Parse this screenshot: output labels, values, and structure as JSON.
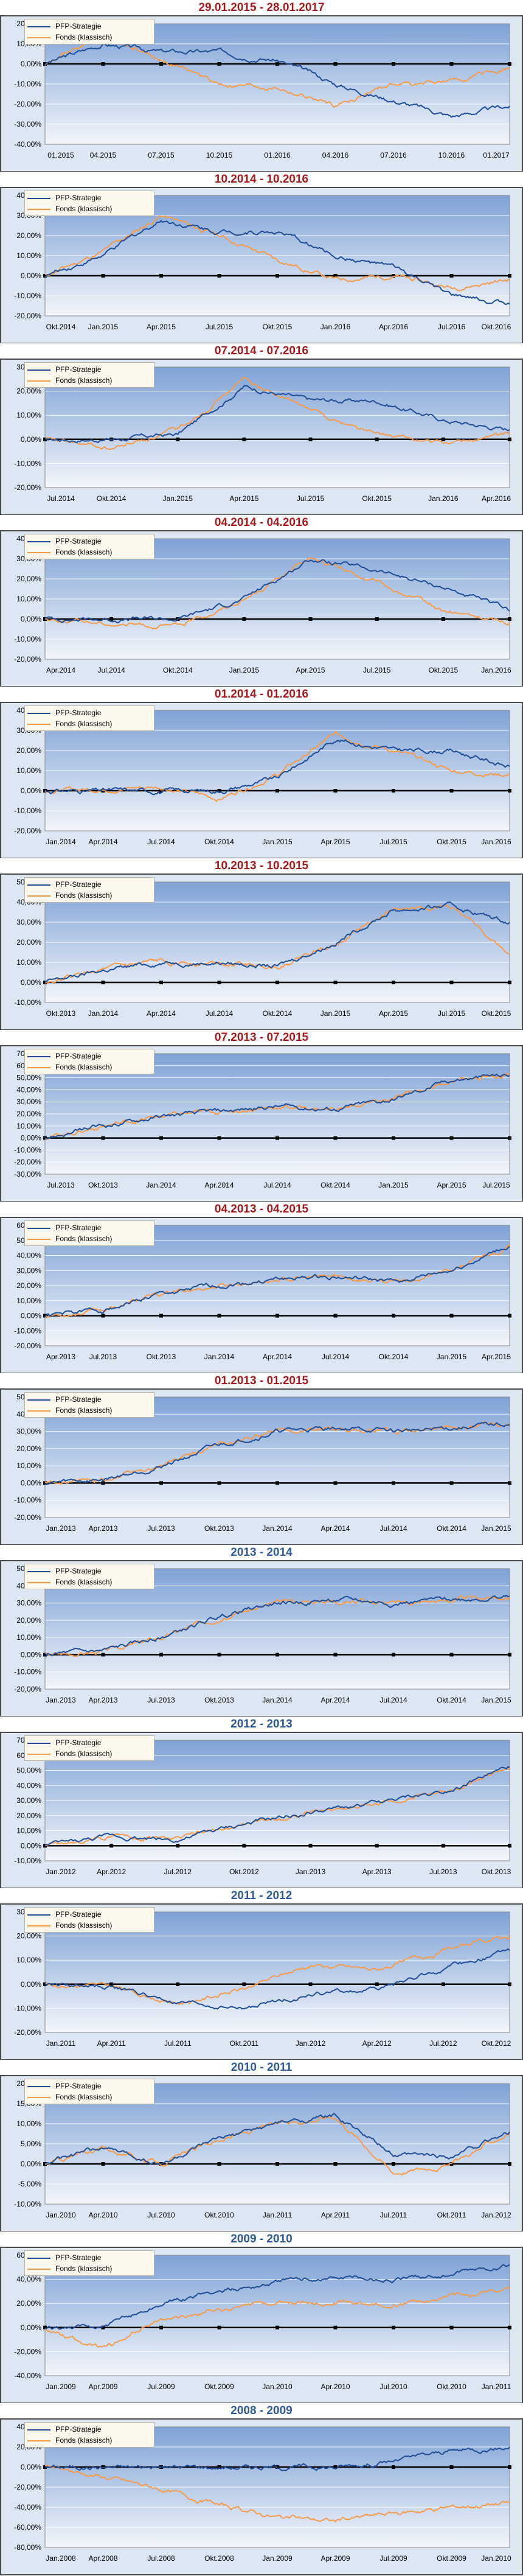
{
  "legend": {
    "strategy": "PFP-Strategie",
    "fund": "Fonds (klassisch)"
  },
  "colors": {
    "strategy": "#1f4e96",
    "fund": "#f59b4c",
    "title_red": "#a8191c",
    "title_blue": "#2f5a97",
    "zero_line": "#000000",
    "grid": "#ffffff"
  },
  "chart_data": [
    {
      "type": "line",
      "title": "29.01.2015 - 28.01.2017",
      "title_color": "red",
      "categories": [
        "01.2015",
        "04.2015",
        "07.2015",
        "10.2015",
        "01.2016",
        "04.2016",
        "07.2016",
        "10.2016",
        "01.2017"
      ],
      "y_ticks": [
        "20,00%",
        "10,00%",
        "0,00%",
        "-10,00%",
        "-20,00%",
        "-30,00%",
        "-40,00%"
      ],
      "ylim": [
        -40,
        20
      ],
      "series": [
        {
          "name": "PFP-Strategie",
          "values": [
            0,
            10,
            6,
            6,
            2,
            -10,
            -18,
            -26,
            -21
          ]
        },
        {
          "name": "Fonds (klassisch)",
          "values": [
            0,
            15,
            2,
            -10,
            -12,
            -21,
            -10,
            -9,
            -2
          ]
        }
      ]
    },
    {
      "type": "line",
      "title": "10.2014 - 10.2016",
      "title_color": "red",
      "categories": [
        "Okt.2014",
        "Jan.2015",
        "Apr.2015",
        "Jul.2015",
        "Okt.2015",
        "Jan.2016",
        "Apr.2016",
        "Jul.2016",
        "Okt.2016"
      ],
      "y_ticks": [
        "40,00%",
        "30,00%",
        "20,00%",
        "10,00%",
        "0,00%",
        "-10,00%",
        "-20,00%"
      ],
      "ylim": [
        -20,
        40
      ],
      "series": [
        {
          "name": "PFP-Strategie",
          "values": [
            0,
            10,
            28,
            22,
            22,
            10,
            4,
            -10,
            -14
          ]
        },
        {
          "name": "Fonds (klassisch)",
          "values": [
            0,
            12,
            30,
            20,
            8,
            -2,
            0,
            -6,
            -2
          ]
        }
      ]
    },
    {
      "type": "line",
      "title": "07.2014 - 07.2016",
      "title_color": "red",
      "categories": [
        "Jul.2014",
        "Okt.2014",
        "Jan.2015",
        "Apr.2015",
        "Jul.2015",
        "Okt.2015",
        "Jan.2016",
        "Apr.2016"
      ],
      "y_ticks": [
        "30,00%",
        "20,00%",
        "10,00%",
        "0,00%",
        "-10,00%",
        "-20,00%"
      ],
      "ylim": [
        -20,
        30
      ],
      "series": [
        {
          "name": "PFP-Strategie",
          "values": [
            0,
            0,
            2,
            22,
            16,
            16,
            8,
            4
          ]
        },
        {
          "name": "Fonds (klassisch)",
          "values": [
            0,
            -4,
            4,
            25,
            12,
            2,
            -2,
            2
          ]
        }
      ]
    },
    {
      "type": "line",
      "title": "04.2014 - 04.2016",
      "title_color": "red",
      "categories": [
        "Apr.2014",
        "Jul.2014",
        "Okt.2014",
        "Jan.2015",
        "Apr.2015",
        "Jul.2015",
        "Okt.2015",
        "Jan.2016"
      ],
      "y_ticks": [
        "40,00%",
        "30,00%",
        "20,00%",
        "10,00%",
        "0,00%",
        "-10,00%",
        "-20,00%"
      ],
      "ylim": [
        -20,
        40
      ],
      "series": [
        {
          "name": "PFP-Strategie",
          "values": [
            0,
            0,
            0,
            10,
            30,
            24,
            16,
            4
          ]
        },
        {
          "name": "Fonds (klassisch)",
          "values": [
            0,
            -2,
            -4,
            10,
            30,
            18,
            4,
            -2
          ]
        }
      ]
    },
    {
      "type": "line",
      "title": "01.2014 - 01.2016",
      "title_color": "red",
      "categories": [
        "Jan.2014",
        "Apr.2014",
        "Jul.2014",
        "Okt.2014",
        "Jan.2015",
        "Apr.2015",
        "Jul.2015",
        "Okt.2015",
        "Jan.2016"
      ],
      "y_ticks": [
        "40,00%",
        "30,00%",
        "20,00%",
        "10,00%",
        "0,00%",
        "-10,00%",
        "-20,00%"
      ],
      "ylim": [
        -20,
        40
      ],
      "series": [
        {
          "name": "PFP-Strategie",
          "values": [
            0,
            0,
            0,
            0,
            6,
            26,
            20,
            20,
            12
          ]
        },
        {
          "name": "Fonds (klassisch)",
          "values": [
            0,
            1,
            2,
            -4,
            8,
            28,
            20,
            10,
            8
          ]
        }
      ]
    },
    {
      "type": "line",
      "title": "10.2013 - 10.2015",
      "title_color": "red",
      "categories": [
        "Okt.2013",
        "Jan.2014",
        "Apr.2014",
        "Jul.2014",
        "Okt.2014",
        "Jan.2015",
        "Apr.2015",
        "Jul.2015",
        "Okt.2015"
      ],
      "y_ticks": [
        "50,00%",
        "40,00%",
        "30,00%",
        "20,00%",
        "10,00%",
        "0,00%",
        "-10,00%"
      ],
      "ylim": [
        -10,
        50
      ],
      "series": [
        {
          "name": "PFP-Strategie",
          "values": [
            0,
            6,
            10,
            10,
            8,
            20,
            36,
            38,
            30
          ]
        },
        {
          "name": "Fonds (klassisch)",
          "values": [
            0,
            6,
            10,
            10,
            8,
            20,
            36,
            38,
            14
          ]
        }
      ]
    },
    {
      "type": "line",
      "title": "07.2013 - 07.2015",
      "title_color": "red",
      "categories": [
        "Jul.2013",
        "Okt.2013",
        "Jan.2014",
        "Apr.2014",
        "Jul.2014",
        "Okt.2014",
        "Jan.2015",
        "Apr.2015",
        "Jul.2015"
      ],
      "y_ticks": [
        "70,00%",
        "60,00%",
        "50,00%",
        "40,00%",
        "30,00%",
        "20,00%",
        "10,00%",
        "0,00%",
        "-10,00%",
        "-20,00%",
        "-30,00%"
      ],
      "ylim": [
        -30,
        70
      ],
      "series": [
        {
          "name": "PFP-Strategie",
          "values": [
            0,
            10,
            18,
            22,
            26,
            24,
            32,
            48,
            52
          ]
        },
        {
          "name": "Fonds (klassisch)",
          "values": [
            0,
            10,
            18,
            22,
            26,
            24,
            32,
            48,
            52
          ]
        }
      ]
    },
    {
      "type": "line",
      "title": "04.2013 - 04.2015",
      "title_color": "red",
      "categories": [
        "Apr.2013",
        "Jul.2013",
        "Okt.2013",
        "Jan.2014",
        "Apr.2014",
        "Jul.2014",
        "Okt.2014",
        "Jan.2015",
        "Apr.2015"
      ],
      "y_ticks": [
        "60,00%",
        "50,00%",
        "40,00%",
        "30,00%",
        "20,00%",
        "10,00%",
        "0,00%",
        "-10,00%",
        "-20,00%"
      ],
      "ylim": [
        -20,
        60
      ],
      "series": [
        {
          "name": "PFP-Strategie",
          "values": [
            0,
            4,
            14,
            20,
            24,
            26,
            22,
            30,
            46
          ]
        },
        {
          "name": "Fonds (klassisch)",
          "values": [
            0,
            4,
            14,
            20,
            24,
            26,
            22,
            30,
            46
          ]
        }
      ]
    },
    {
      "type": "line",
      "title": "01.2013 - 01.2015",
      "title_color": "red",
      "categories": [
        "Jan.2013",
        "Apr.2013",
        "Jul.2013",
        "Okt.2013",
        "Jan.2014",
        "Apr.2014",
        "Jul.2014",
        "Okt.2014",
        "Jan.2015"
      ],
      "y_ticks": [
        "50,00%",
        "40,00%",
        "30,00%",
        "20,00%",
        "10,00%",
        "0,00%",
        "-10,00%",
        "-20,00%"
      ],
      "ylim": [
        -20,
        50
      ],
      "series": [
        {
          "name": "PFP-Strategie",
          "values": [
            0,
            2,
            10,
            22,
            30,
            32,
            30,
            32,
            34
          ]
        },
        {
          "name": "Fonds (klassisch)",
          "values": [
            0,
            2,
            10,
            22,
            30,
            32,
            30,
            32,
            34
          ]
        }
      ]
    },
    {
      "type": "line",
      "title": "2013 - 2014",
      "title_color": "blue",
      "categories": [
        "Jan.2013",
        "Apr.2013",
        "Jul.2013",
        "Okt.2013",
        "Jan.2014",
        "Apr.2014",
        "Jul.2014",
        "Okt.2014",
        "Jan.2015"
      ],
      "y_ticks": [
        "50,00%",
        "40,00%",
        "30,00%",
        "20,00%",
        "10,00%",
        "0,00%",
        "-10,00%",
        "-20,00%"
      ],
      "ylim": [
        -20,
        50
      ],
      "series": [
        {
          "name": "PFP-Strategie",
          "values": [
            0,
            2,
            10,
            22,
            30,
            32,
            30,
            32,
            34
          ]
        },
        {
          "name": "Fonds (klassisch)",
          "values": [
            0,
            2,
            10,
            22,
            30,
            32,
            30,
            32,
            34
          ]
        }
      ]
    },
    {
      "type": "line",
      "title": "2012 - 2013",
      "title_color": "blue",
      "categories": [
        "Jan.2012",
        "Apr.2012",
        "Jul.2012",
        "Okt.2012",
        "Jan.2013",
        "Apr.2013",
        "Jul.2013",
        "Okt.2013"
      ],
      "y_ticks": [
        "70,00%",
        "60,00%",
        "50,00%",
        "40,00%",
        "30,00%",
        "20,00%",
        "10,00%",
        "0,00%",
        "-10,00%"
      ],
      "ylim": [
        -10,
        70
      ],
      "series": [
        {
          "name": "PFP-Strategie",
          "values": [
            0,
            6,
            4,
            14,
            22,
            28,
            36,
            52
          ]
        },
        {
          "name": "Fonds (klassisch)",
          "values": [
            0,
            6,
            4,
            14,
            22,
            28,
            36,
            52
          ]
        }
      ]
    },
    {
      "type": "line",
      "title": "2011 - 2012",
      "title_color": "blue",
      "categories": [
        "Jan.2011",
        "Apr.2011",
        "Jul.2011",
        "Okt.2011",
        "Jan.2012",
        "Apr.2012",
        "Jul.2012",
        "Okt.2012"
      ],
      "y_ticks": [
        "30,00%",
        "20,00%",
        "10,00%",
        "0,00%",
        "-10,00%",
        "-20,00%"
      ],
      "ylim": [
        -20,
        30
      ],
      "series": [
        {
          "name": "PFP-Strategie",
          "values": [
            0,
            -1,
            -8,
            -10,
            -4,
            -2,
            6,
            14
          ]
        },
        {
          "name": "Fonds (klassisch)",
          "values": [
            0,
            -1,
            -8,
            -2,
            8,
            6,
            14,
            20
          ]
        }
      ]
    },
    {
      "type": "line",
      "title": "2010 - 2011",
      "title_color": "blue",
      "categories": [
        "Jan.2010",
        "Apr.2010",
        "Jul.2010",
        "Okt.2010",
        "Jan.2011",
        "Apr.2011",
        "Jul.2011",
        "Okt.2011",
        "Jan.2012"
      ],
      "y_ticks": [
        "20,00%",
        "15,00%",
        "10,00%",
        "5,00%",
        "0,00%",
        "-5,00%",
        "-10,00%"
      ],
      "ylim": [
        -10,
        20
      ],
      "series": [
        {
          "name": "PFP-Strategie",
          "values": [
            0,
            4,
            0,
            6,
            10,
            12,
            2,
            2,
            8
          ]
        },
        {
          "name": "Fonds (klassisch)",
          "values": [
            0,
            4,
            0,
            6,
            10,
            12,
            -2,
            0,
            8
          ]
        }
      ]
    },
    {
      "type": "line",
      "title": "2009 - 2010",
      "title_color": "blue",
      "categories": [
        "Jan.2009",
        "Apr.2009",
        "Jul.2009",
        "Okt.2009",
        "Jan.2010",
        "Apr.2010",
        "Jul.2010",
        "Okt.2010",
        "Jan.2011"
      ],
      "y_ticks": [
        "60,00%",
        "40,00%",
        "20,00%",
        "0,00%",
        "-20,00%",
        "-40,00%"
      ],
      "ylim": [
        -40,
        60
      ],
      "series": [
        {
          "name": "PFP-Strategie",
          "values": [
            0,
            0,
            20,
            30,
            38,
            42,
            40,
            44,
            52
          ]
        },
        {
          "name": "Fonds (klassisch)",
          "values": [
            0,
            -18,
            6,
            14,
            20,
            22,
            18,
            26,
            32
          ]
        }
      ]
    },
    {
      "type": "line",
      "title": "2008 - 2009",
      "title_color": "blue",
      "categories": [
        "Jan.2008",
        "Apr.2008",
        "Jul.2008",
        "Okt.2008",
        "Jan.2009",
        "Apr.2009",
        "Jul.2009",
        "Okt.2009",
        "Jan.2010"
      ],
      "y_ticks": [
        "40,00%",
        "20,00%",
        "0,00%",
        "-20,00%",
        "-40,00%",
        "-60,00%",
        "-80,00%"
      ],
      "ylim": [
        -80,
        40
      ],
      "series": [
        {
          "name": "PFP-Strategie",
          "values": [
            0,
            0,
            0,
            0,
            0,
            0,
            6,
            16,
            20
          ]
        },
        {
          "name": "Fonds (klassisch)",
          "values": [
            0,
            -10,
            -22,
            -38,
            -50,
            -54,
            -46,
            -40,
            -36
          ]
        }
      ]
    }
  ]
}
